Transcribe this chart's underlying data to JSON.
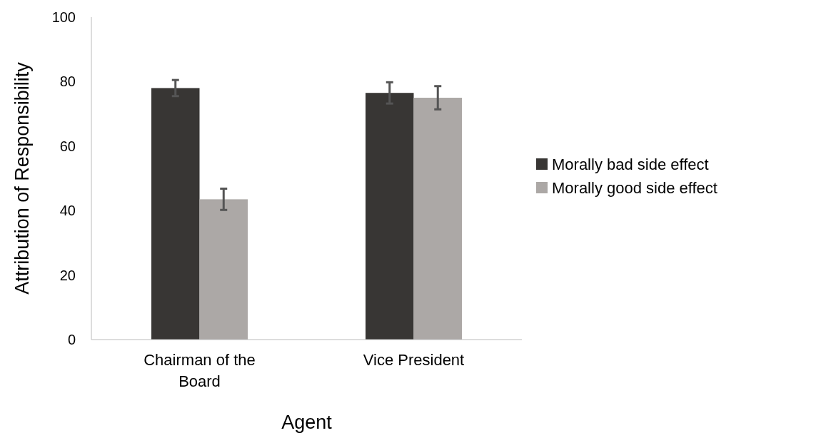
{
  "chart_data": {
    "type": "bar",
    "xlabel": "Agent",
    "ylabel": "Attribution of Responsibility",
    "categories": [
      "Chairman of the Board",
      "Vice President"
    ],
    "series": [
      {
        "name": "Morally bad side effect",
        "color": "#383634",
        "values": [
          78,
          76.5
        ],
        "errors": [
          2.5,
          3.3
        ]
      },
      {
        "name": "Morally good side effect",
        "color": "#aca8a6",
        "values": [
          43.5,
          75
        ],
        "errors": [
          3.3,
          3.6
        ]
      }
    ],
    "ylim": [
      0,
      100
    ],
    "yticks": [
      0,
      20,
      40,
      60,
      80,
      100
    ],
    "grid": false,
    "legend": "right"
  }
}
